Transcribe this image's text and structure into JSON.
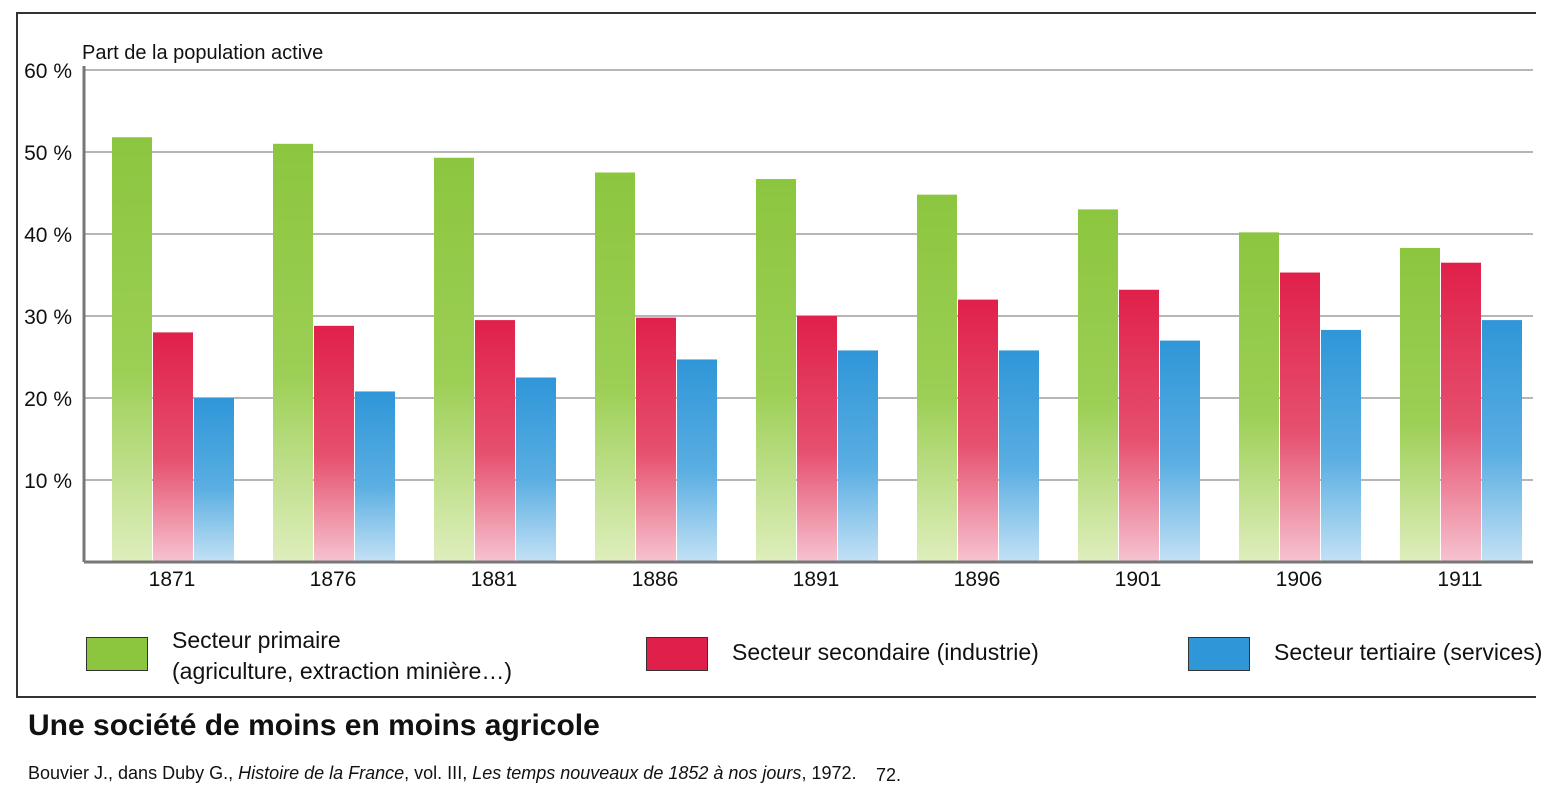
{
  "chart_data": {
    "type": "bar",
    "ylabel": "Part de la population active",
    "ylim": [
      0,
      60
    ],
    "y_ticks": [
      "10 %",
      "20 %",
      "30 %",
      "40 %",
      "50 %",
      "60 %"
    ],
    "grid": true,
    "categories": [
      "1871",
      "1876",
      "1881",
      "1886",
      "1891",
      "1896",
      "1901",
      "1906",
      "1911"
    ],
    "series": [
      {
        "name": "Secteur primaire (agriculture, extraction minière…)",
        "color": "#8cc63f",
        "values": [
          51.8,
          51.0,
          49.3,
          47.5,
          46.7,
          44.8,
          43.0,
          40.2,
          38.3
        ]
      },
      {
        "name": "Secteur secondaire (industrie)",
        "color": "#e0204a",
        "values": [
          28.0,
          28.8,
          29.5,
          29.8,
          30.0,
          32.0,
          33.2,
          35.3,
          36.5
        ]
      },
      {
        "name": "Secteur tertiaire (services)",
        "color": "#2f96d8",
        "values": [
          20.0,
          20.8,
          22.5,
          24.7,
          25.8,
          25.8,
          27.0,
          28.3,
          29.5
        ]
      }
    ],
    "legend_placement": "bottom"
  },
  "legend": {
    "primary_line1": "Secteur primaire",
    "primary_line2": "(agriculture, extraction minière…)",
    "secondary": "Secteur secondaire (industrie)",
    "tertiary": "Secteur tertiaire (services)"
  },
  "caption": {
    "title": "Une société de moins en moins agricole",
    "source_author": "Bouvier J., dans Duby G., ",
    "source_work": "Histoire de la France",
    "source_vol": ", vol. III, ",
    "source_subtitle": "Les temps nouveaux de 1852 à nos jours",
    "source_year": ", 1972.",
    "page_fragment": "72."
  }
}
